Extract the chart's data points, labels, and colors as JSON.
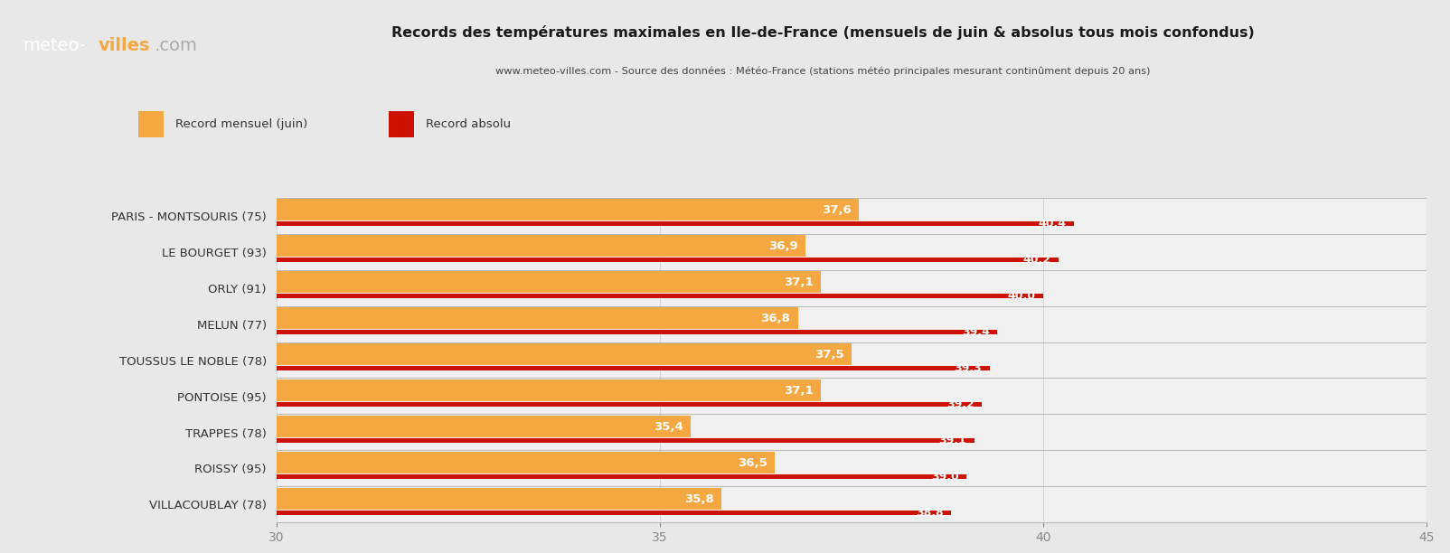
{
  "title_line1": "Records des températures maximales en Ile-de-France (mensuels de juin & absolus tous mois confondus)",
  "title_line2": "www.meteo-villes.com - Source des données : Météo-France (stations météo principales mesurant continûment depuis 20 ans)",
  "legend_label1": "Record mensuel (juin)",
  "legend_label2": "Record absolu",
  "stations": [
    "PARIS - MONTSOURIS (75)",
    "LE BOURGET (93)",
    "ORLY (91)",
    "MELUN (77)",
    "TOUSSUS LE NOBLE (78)",
    "PONTOISE (95)",
    "TRAPPES (78)",
    "ROISSY (95)",
    "VILLACOUBLAY (78)"
  ],
  "record_mensuel": [
    37.6,
    36.9,
    37.1,
    36.8,
    37.5,
    37.1,
    35.4,
    36.5,
    35.8
  ],
  "record_absolu": [
    40.4,
    40.2,
    40.0,
    39.4,
    39.3,
    39.2,
    39.1,
    39.0,
    38.8
  ],
  "color_mensuel": "#F5A742",
  "color_absolu": "#CC1100",
  "color_background": "#E8E8E8",
  "color_plot_bg": "#F0F0F0",
  "color_header_bg": "#1B2A3B",
  "color_separator": "#BBBBBB",
  "xlim_min": 30,
  "xlim_max": 45,
  "xticks": [
    30,
    35,
    40,
    45
  ],
  "orange_bar_height": 0.55,
  "red_bar_height": 0.13,
  "logo_color_meteo": "#FFFFFF",
  "logo_color_villes": "#F5A742",
  "logo_color_com": "#AAAAAA",
  "title_color": "#1A1A1A",
  "subtitle_color": "#444444",
  "label_color": "#333333"
}
